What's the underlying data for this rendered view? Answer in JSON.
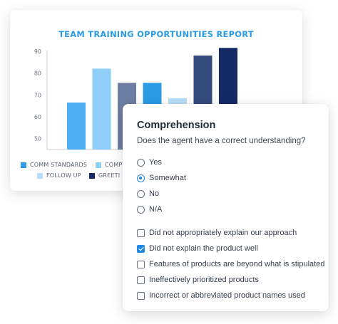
{
  "chart_data": {
    "type": "bar",
    "title": "TEAM TRAINING OPPORTUNITIES REPORT",
    "xlabel": "",
    "ylabel": "",
    "ylim": [
      45,
      93
    ],
    "yticks": [
      50,
      60,
      70,
      80,
      90
    ],
    "grid": false,
    "legend_position": "bottom",
    "bars": [
      {
        "value": 66.5,
        "color": "#4db1f2"
      },
      {
        "value": 82,
        "color": "#8fcff7"
      },
      {
        "value": 75.5,
        "color": "#6c7ea3"
      },
      {
        "value": 75.5,
        "color": "#2b9be6"
      },
      {
        "value": 68.5,
        "color": "#b8def8"
      },
      {
        "value": 88,
        "color": "#344b7e"
      },
      {
        "value": 91.5,
        "color": "#142a66"
      }
    ],
    "legend": [
      {
        "label": "COMM STANDARDS",
        "color": "#2b9be6"
      },
      {
        "label": "COMP",
        "color": "#8fcff7"
      },
      {
        "label": "FOLLOW UP",
        "color": "#b8def8"
      },
      {
        "label": "GREETI",
        "color": "#142a66"
      }
    ]
  },
  "question": {
    "title": "Comprehension",
    "prompt": "Does the agent have a correct understanding?",
    "radio_options": [
      {
        "label": "Yes",
        "selected": false
      },
      {
        "label": "Somewhat",
        "selected": true
      },
      {
        "label": "No",
        "selected": false
      },
      {
        "label": "N/A",
        "selected": false
      }
    ],
    "checkbox_options": [
      {
        "label": "Did not appropriately explain our approach",
        "checked": false
      },
      {
        "label": "Did not explain the product well",
        "checked": true
      },
      {
        "label": "Features of products are beyond what is stipulated",
        "checked": false
      },
      {
        "label": "Ineffectively prioritized products",
        "checked": false
      },
      {
        "label": "Incorrect or abbreviated product names used",
        "checked": false
      }
    ]
  },
  "colors": {
    "accent": "#1e88e5",
    "title_blue": "#2b9be6"
  }
}
